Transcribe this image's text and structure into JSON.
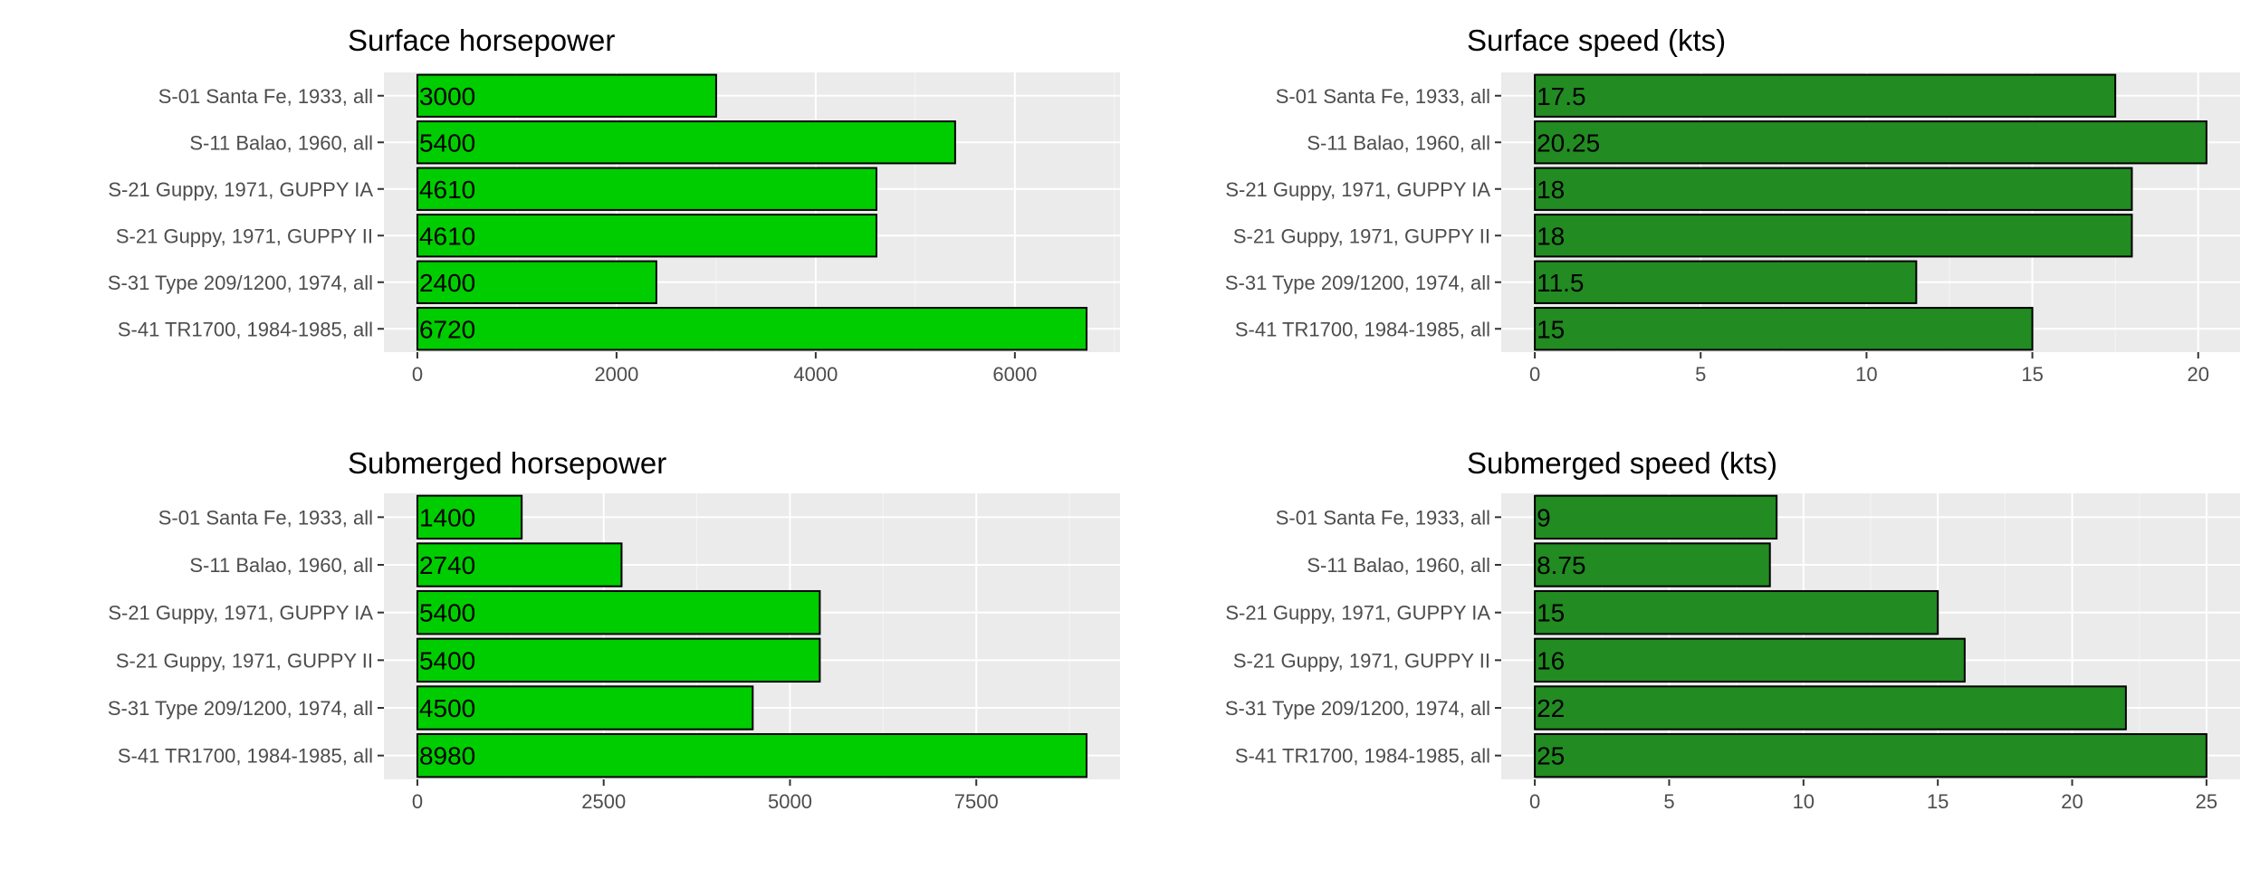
{
  "chart_data": [
    {
      "type": "bar",
      "orientation": "horizontal",
      "title": "Surface horsepower",
      "categories": [
        "S-01 Santa Fe, 1933, all",
        "S-11 Balao, 1960, all",
        "S-21 Guppy, 1971, GUPPY IA",
        "S-21 Guppy, 1971, GUPPY II",
        "S-31 Type 209/1200, 1974, all",
        "S-41 TR1700, 1984-1985, all"
      ],
      "values": [
        3000,
        5400,
        4610,
        4610,
        2400,
        6720
      ],
      "value_labels": [
        "3000",
        "5400",
        "4610",
        "4610",
        "2400",
        "6720"
      ],
      "xticks": [
        0,
        2000,
        4000,
        6000
      ],
      "xtick_labels": [
        "0",
        "2000",
        "4000",
        "6000"
      ],
      "xlim": [
        -336,
        7056
      ],
      "xlabel": "",
      "ylabel": "",
      "grid": true,
      "color": "#00cd00"
    },
    {
      "type": "bar",
      "orientation": "horizontal",
      "title": "Surface speed (kts)",
      "categories": [
        "S-01 Santa Fe, 1933, all",
        "S-11 Balao, 1960, all",
        "S-21 Guppy, 1971, GUPPY IA",
        "S-21 Guppy, 1971, GUPPY II",
        "S-31 Type 209/1200, 1974, all",
        "S-41 TR1700, 1984-1985, all"
      ],
      "values": [
        17.5,
        20.25,
        18,
        18,
        11.5,
        15
      ],
      "value_labels": [
        "17.5",
        "20.25",
        "18",
        "18",
        "11.5",
        "15"
      ],
      "xticks": [
        0,
        5,
        10,
        15,
        20
      ],
      "xtick_labels": [
        "0",
        "5",
        "10",
        "15",
        "20"
      ],
      "xlim": [
        -1.0125,
        21.2625
      ],
      "xlabel": "",
      "ylabel": "",
      "grid": true,
      "color": "#228b22"
    },
    {
      "type": "bar",
      "orientation": "horizontal",
      "title": "Submerged horsepower",
      "categories": [
        "S-01 Santa Fe, 1933, all",
        "S-11 Balao, 1960, all",
        "S-21 Guppy, 1971, GUPPY IA",
        "S-21 Guppy, 1971, GUPPY II",
        "S-31 Type 209/1200, 1974, all",
        "S-41 TR1700, 1984-1985, all"
      ],
      "values": [
        1400,
        2740,
        5400,
        5400,
        4500,
        8980
      ],
      "value_labels": [
        "1400",
        "2740",
        "5400",
        "5400",
        "4500",
        "8980"
      ],
      "xticks": [
        0,
        2500,
        5000,
        7500
      ],
      "xtick_labels": [
        "0",
        "2500",
        "5000",
        "7500"
      ],
      "xlim": [
        -449,
        9429
      ],
      "xlabel": "",
      "ylabel": "",
      "grid": true,
      "color": "#00cd00"
    },
    {
      "type": "bar",
      "orientation": "horizontal",
      "title": "Submerged speed (kts)",
      "categories": [
        "S-01 Santa Fe, 1933, all",
        "S-11 Balao, 1960, all",
        "S-21 Guppy, 1971, GUPPY IA",
        "S-21 Guppy, 1971, GUPPY II",
        "S-31 Type 209/1200, 1974, all",
        "S-41 TR1700, 1984-1985, all"
      ],
      "values": [
        9,
        8.75,
        15,
        16,
        22,
        25
      ],
      "value_labels": [
        "9",
        "8.75",
        "15",
        "16",
        "22",
        "25"
      ],
      "xticks": [
        0,
        5,
        10,
        15,
        20,
        25
      ],
      "xtick_labels": [
        "0",
        "5",
        "10",
        "15",
        "20",
        "25"
      ],
      "xlim": [
        -1.25,
        26.25
      ],
      "xlabel": "",
      "ylabel": "",
      "grid": true,
      "color": "#228b22"
    }
  ]
}
